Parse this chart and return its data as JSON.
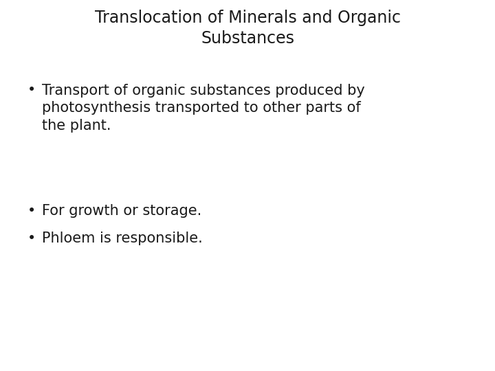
{
  "title_line1": "Translocation of Minerals and Organic",
  "title_line2": "Substances",
  "bullet1_line1": "Transport of organic substances produced by",
  "bullet1_line2": "photosynthesis transported to other parts of",
  "bullet1_line3": "the plant.",
  "bullet2": "For growth or storage.",
  "bullet3": "Phloem is responsible.",
  "background_color": "#ffffff",
  "text_color": "#1a1a1a",
  "title_fontsize": 17,
  "bullet_fontsize": 15,
  "bullet_symbol": "•",
  "font_family": "DejaVu Sans"
}
